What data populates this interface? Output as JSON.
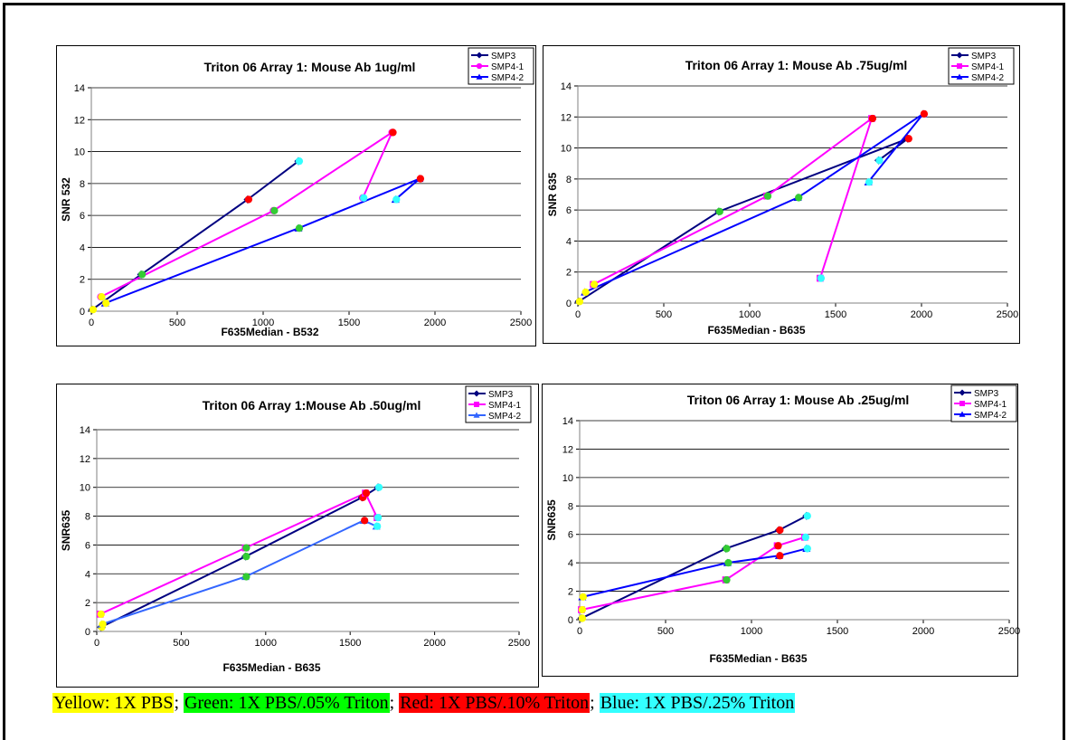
{
  "marker_colors": {
    "yellow": "#ffff00",
    "green": "#33cc33",
    "red": "#ff0000",
    "blue": "#33ffff"
  },
  "legend_labels": [
    "SMP3",
    "SMP4-1",
    "SMP4-2"
  ],
  "chart_data": [
    {
      "type": "line",
      "title": "Triton 06 Array 1: Mouse Ab 1ug/ml",
      "xlabel": "F635Median - B532",
      "ylabel": "SNR 532",
      "xlim": [
        0,
        2500
      ],
      "ylim": [
        0,
        14
      ],
      "xticks": [
        "0",
        "500",
        "1000",
        "1500",
        "2000",
        "2500"
      ],
      "yticks": [
        "0",
        "2",
        "4",
        "6",
        "8",
        "10",
        "12",
        "14"
      ],
      "grid": "horizontal",
      "legend": "top-right",
      "series": [
        {
          "name": "SMP3",
          "color": "#000080",
          "marker": "diamond",
          "x": [
            5,
            290,
            910,
            1205
          ],
          "y": [
            0.1,
            2.3,
            7.0,
            9.4
          ]
        },
        {
          "name": "SMP4-1",
          "color": "#ff00ff",
          "marker": "circle",
          "x": [
            55,
            1060,
            1750,
            1580
          ],
          "y": [
            0.9,
            6.3,
            11.2,
            7.1
          ]
        },
        {
          "name": "SMP4-2",
          "color": "#0000ff",
          "marker": "triangle",
          "x": [
            80,
            1205,
            1910,
            1770
          ],
          "y": [
            0.5,
            5.2,
            8.3,
            7.0
          ]
        }
      ]
    },
    {
      "type": "line",
      "title": "Triton 06 Array 1: Mouse Ab .75ug/ml",
      "xlabel": "F635Median - B635",
      "ylabel": "SNR 635",
      "xlim": [
        0,
        2500
      ],
      "ylim": [
        0,
        14
      ],
      "xticks": [
        "0",
        "500",
        "1000",
        "1500",
        "2000",
        "2500"
      ],
      "yticks": [
        "0",
        "2",
        "4",
        "6",
        "8",
        "10",
        "12",
        "14"
      ],
      "grid": "horizontal",
      "legend": "top-right",
      "series": [
        {
          "name": "SMP3",
          "color": "#000080",
          "marker": "diamond",
          "x": [
            5,
            820,
            1920,
            1750
          ],
          "y": [
            0.1,
            5.9,
            10.6,
            9.2
          ]
        },
        {
          "name": "SMP4-1",
          "color": "#ff00ff",
          "marker": "square",
          "x": [
            90,
            1100,
            1710,
            1410
          ],
          "y": [
            1.2,
            6.9,
            11.9,
            1.6
          ]
        },
        {
          "name": "SMP4-2",
          "color": "#0000ff",
          "marker": "triangle",
          "x": [
            40,
            1280,
            2010,
            1690
          ],
          "y": [
            0.7,
            6.8,
            12.2,
            7.8
          ]
        }
      ]
    },
    {
      "type": "line",
      "title": "Triton 06 Array 1:Mouse Ab .50ug/ml",
      "xlabel": "F635Median - B635",
      "ylabel": "SNR635",
      "xlim": [
        0,
        2500
      ],
      "ylim": [
        0,
        14
      ],
      "xticks": [
        "0",
        "500",
        "1000",
        "1500",
        "2000",
        "2500"
      ],
      "yticks": [
        "0",
        "2",
        "4",
        "6",
        "8",
        "10",
        "12",
        "14"
      ],
      "grid": "horizontal",
      "legend": "top-right",
      "series": [
        {
          "name": "SMP3",
          "color": "#000080",
          "marker": "diamond",
          "x": [
            25,
            880,
            1570,
            1665
          ],
          "y": [
            0.3,
            5.2,
            9.3,
            10.0
          ]
        },
        {
          "name": "SMP4-1",
          "color": "#ff00ff",
          "marker": "square",
          "x": [
            20,
            880,
            1590,
            1660
          ],
          "y": [
            1.2,
            5.8,
            9.6,
            7.9
          ]
        },
        {
          "name": "SMP4-2",
          "color": "#3366ff",
          "marker": "triangle",
          "x": [
            30,
            880,
            1580,
            1655
          ],
          "y": [
            0.5,
            3.8,
            7.7,
            7.3
          ]
        }
      ]
    },
    {
      "type": "line",
      "title": "Triton 06 Array 1: Mouse Ab .25ug/ml",
      "xlabel": "F635Median - B635",
      "ylabel": "SNR635",
      "xlim": [
        0,
        2500
      ],
      "ylim": [
        0,
        14
      ],
      "xticks": [
        "0",
        "500",
        "1000",
        "1500",
        "2000",
        "2500"
      ],
      "yticks": [
        "0",
        "2",
        "4",
        "6",
        "8",
        "10",
        "12",
        "14"
      ],
      "grid": "horizontal",
      "legend": "top-right",
      "series": [
        {
          "name": "SMP3",
          "color": "#000080",
          "marker": "diamond",
          "x": [
            10,
            850,
            1160,
            1320
          ],
          "y": [
            0.1,
            5.0,
            6.3,
            7.3
          ]
        },
        {
          "name": "SMP4-1",
          "color": "#ff00ff",
          "marker": "square",
          "x": [
            10,
            850,
            1150,
            1310
          ],
          "y": [
            0.7,
            2.8,
            5.2,
            5.8
          ]
        },
        {
          "name": "SMP4-2",
          "color": "#0000ff",
          "marker": "triangle",
          "x": [
            15,
            860,
            1160,
            1320
          ],
          "y": [
            1.6,
            4.0,
            4.5,
            5.0
          ]
        }
      ]
    }
  ],
  "caption": [
    {
      "text": "Yellow: 1X PBS",
      "color": "#ffff00"
    },
    {
      "text": "; ",
      "color": ""
    },
    {
      "text": "Green: 1X PBS/.05% Triton",
      "color": "#00ff00"
    },
    {
      "text": "; ",
      "color": ""
    },
    {
      "text": "Red: 1X PBS/.10% Triton",
      "color": "#ff0000"
    },
    {
      "text": "; ",
      "color": ""
    },
    {
      "text": "Blue: 1X PBS/.25% Triton",
      "color": "#33ffff"
    }
  ]
}
